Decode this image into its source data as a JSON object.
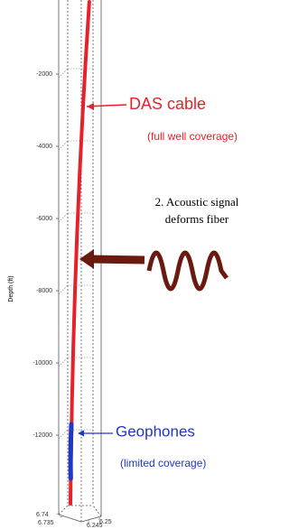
{
  "chart_data": {
    "type": "well",
    "ylabel": "Depth (ft)",
    "ylim": [
      -14000,
      0
    ],
    "yticks": [
      -2000,
      -4000,
      -6000,
      -8000,
      -10000,
      -12000
    ],
    "grid": true,
    "series": [
      {
        "name": "DAS cable",
        "color": "#e8202a",
        "values": [
          0,
          -13900
        ]
      },
      {
        "name": "Geophones",
        "color": "#2036c8",
        "values": [
          -11700,
          -13200
        ]
      }
    ],
    "bottom_left_ticks": [
      6.74,
      6.735
    ],
    "bottom_right_ticks": [
      6.245,
      6.25
    ],
    "annotations": {
      "das_note": "(full well coverage)",
      "signal_line1": "2. Acoustic signal",
      "signal_line2": "deforms fiber",
      "geophone_note": "(limited coverage)"
    }
  }
}
